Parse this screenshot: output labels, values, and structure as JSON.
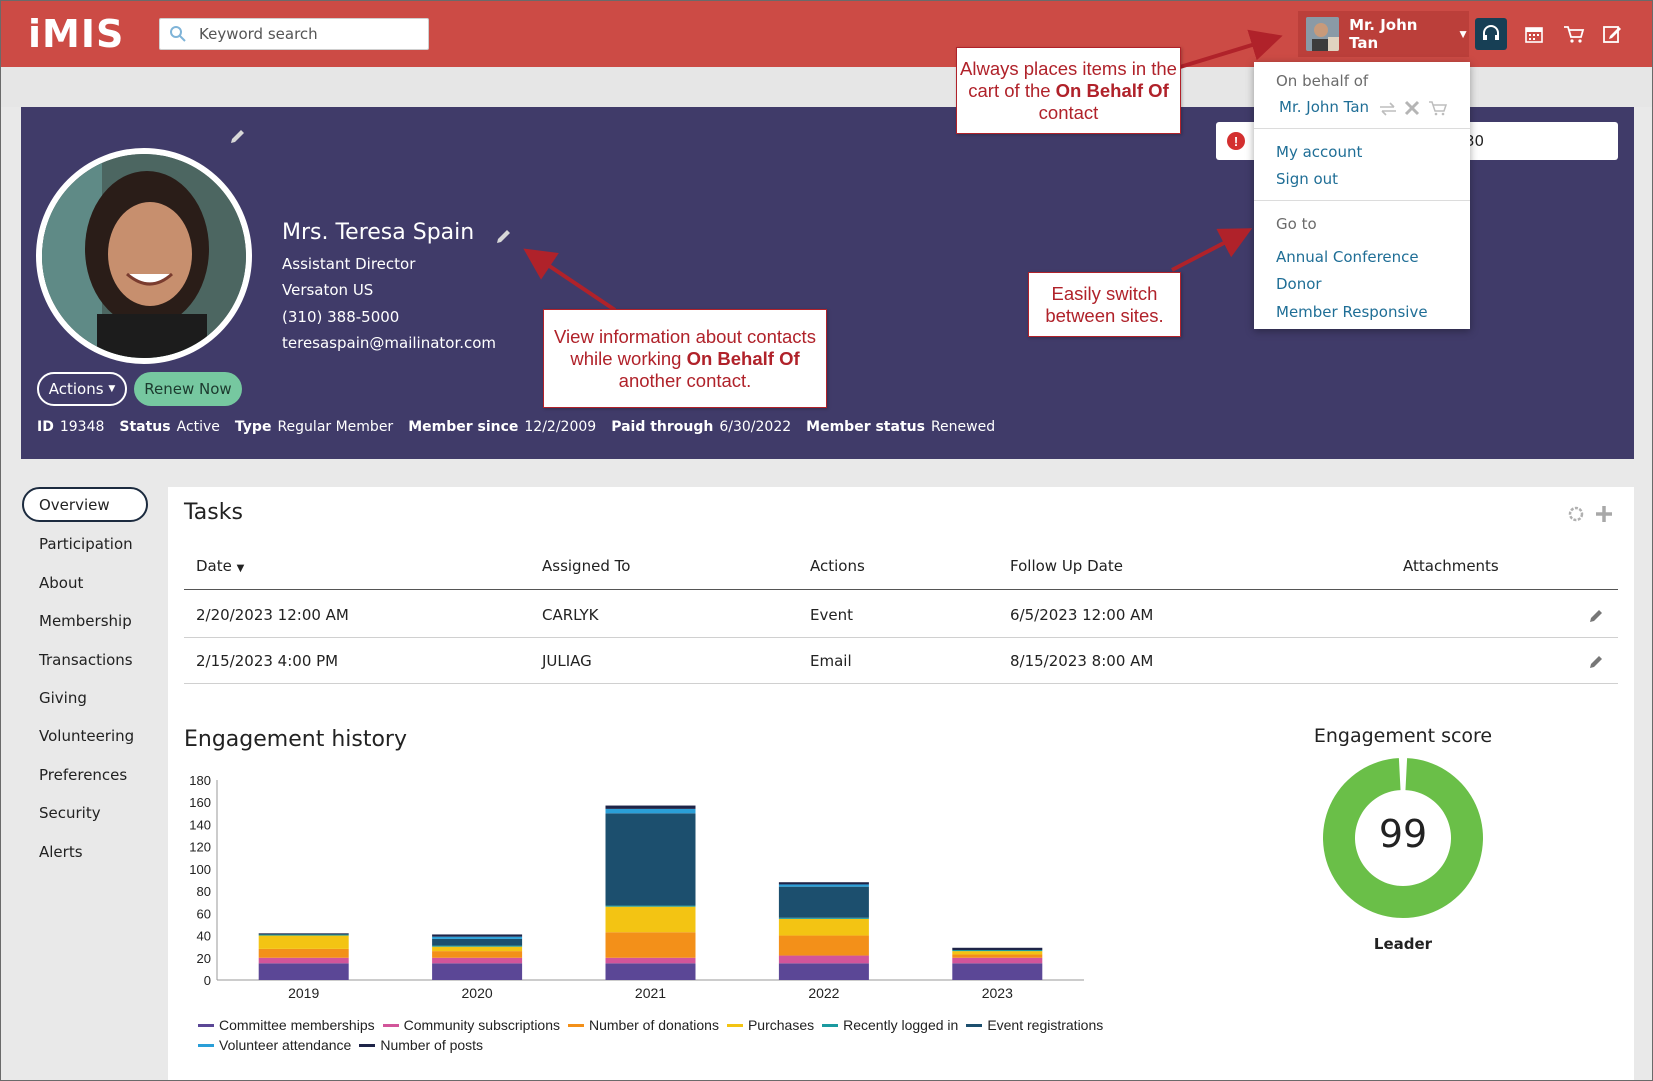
{
  "header": {
    "logo": "iMIS",
    "search_placeholder": "Keyword search",
    "user_name": "Mr. John Tan"
  },
  "dropdown": {
    "on_behalf_label": "On behalf of",
    "on_behalf_name": "Mr. John Tan",
    "account_links": [
      "My account",
      "Sign out"
    ],
    "goto_label": "Go to",
    "goto_links": [
      "Annual Conference",
      "Donor",
      "Member Responsive"
    ]
  },
  "alert": {
    "text": "30"
  },
  "contact": {
    "name": "Mrs. Teresa Spain",
    "title": "Assistant Director",
    "company": "Versaton US",
    "phone": "(310) 388-5000",
    "email": "teresaspain@mailinator.com",
    "actions_label": "Actions",
    "renew_label": "Renew Now",
    "meta": [
      {
        "label": "ID",
        "value": "19348"
      },
      {
        "label": "Status",
        "value": "Active"
      },
      {
        "label": "Type",
        "value": "Regular Member"
      },
      {
        "label": "Member since",
        "value": "12/2/2009"
      },
      {
        "label": "Paid through",
        "value": "6/30/2022"
      },
      {
        "label": "Member status",
        "value": "Renewed"
      }
    ]
  },
  "sidenav": {
    "active": "Overview",
    "items": [
      "Participation",
      "About",
      "Membership",
      "Transactions",
      "Giving",
      "Volunteering",
      "Preferences",
      "Security",
      "Alerts"
    ]
  },
  "tasks": {
    "title": "Tasks",
    "columns": [
      "Date",
      "Assigned To",
      "Actions",
      "Follow Up Date",
      "Attachments"
    ],
    "rows": [
      {
        "date": "2/20/2023 12:00 AM",
        "assigned": "CARLYK",
        "action": "Event",
        "followup": "6/5/2023 12:00 AM"
      },
      {
        "date": "2/15/2023 4:00 PM",
        "assigned": "JULIAG",
        "action": "Email",
        "followup": "8/15/2023 8:00 AM"
      }
    ]
  },
  "engagement_history": {
    "title": "Engagement history"
  },
  "engagement_score": {
    "title": "Engagement score",
    "value": "99",
    "label": "Leader",
    "percent": 99
  },
  "annotations": {
    "cart": {
      "pre": "Always places items in the cart of the ",
      "bold": "On Behalf Of",
      "post": " contact"
    },
    "view": {
      "pre": "View information about contacts while working ",
      "bold": "On Behalf Of",
      "post": " another contact."
    },
    "switch": {
      "pre": "Easily switch between sites.",
      "bold": "",
      "post": ""
    }
  },
  "chart_data": {
    "type": "bar",
    "stacked": true,
    "categories": [
      "2019",
      "2020",
      "2021",
      "2022",
      "2023"
    ],
    "ylim": [
      0,
      180
    ],
    "yticks": [
      0,
      20,
      40,
      60,
      80,
      100,
      120,
      140,
      160,
      180
    ],
    "series": [
      {
        "name": "Committee memberships",
        "color": "#5b4796",
        "values": [
          15,
          15,
          15,
          15,
          15
        ]
      },
      {
        "name": "Community subscriptions",
        "color": "#d2559a",
        "values": [
          5,
          5,
          5,
          7,
          5
        ]
      },
      {
        "name": "Number of donations",
        "color": "#f39019",
        "values": [
          8,
          6,
          23,
          18,
          3
        ]
      },
      {
        "name": "Purchases",
        "color": "#f3c413",
        "values": [
          12,
          4,
          23,
          15,
          3
        ]
      },
      {
        "name": "Recently logged in",
        "color": "#1b9aa0",
        "values": [
          1,
          1,
          1,
          1,
          1
        ]
      },
      {
        "name": "Event registrations",
        "color": "#1c4f6e",
        "values": [
          0,
          6,
          83,
          28,
          0
        ]
      },
      {
        "name": "Volunteer attendance",
        "color": "#2a9fd8",
        "values": [
          0,
          2,
          4,
          2,
          0
        ]
      },
      {
        "name": "Number of posts",
        "color": "#1e2448",
        "values": [
          1,
          2,
          3,
          2,
          2
        ]
      }
    ]
  }
}
